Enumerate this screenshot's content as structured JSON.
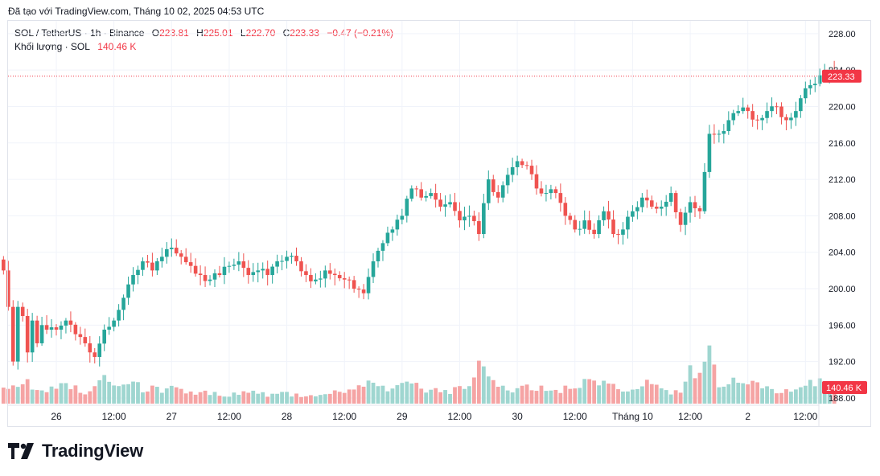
{
  "attribution": "Đã tạo với TradingView.com, Tháng 10 02, 2025 04:53 UTC",
  "legend": {
    "symbol": "SOL / TetherUS · 1h · Binance",
    "o_label": "O",
    "o_value": "223.81",
    "h_label": "H",
    "h_value": "225.01",
    "l_label": "L",
    "l_value": "222.70",
    "c_label": "C",
    "c_value": "223.33",
    "change": "−0.47 (−0.21%)",
    "volume_label": "Khối lượng · SOL",
    "volume_value": "140.46 K"
  },
  "colors": {
    "up": "#26a69a",
    "down": "#ef5350",
    "up_volume": "#9fd6d0",
    "down_volume": "#f5a4a4",
    "price_line": "#f23645",
    "grid": "#f0f3fa",
    "text": "#131722"
  },
  "brand": "TradingView",
  "chart_data": {
    "type": "candlestick",
    "title": "SOL / TetherUS · 1h · Binance",
    "y_axis": {
      "ticks": [
        "228.00",
        "224.00",
        "220.00",
        "216.00",
        "212.00",
        "208.00",
        "204.00",
        "200.00",
        "196.00",
        "192.00",
        "188.00"
      ],
      "range": [
        187.2,
        229.4
      ]
    },
    "x_axis": {
      "ticks": [
        {
          "label": "26",
          "index": 0
        },
        {
          "label": "12:00",
          "index": 12
        },
        {
          "label": "27",
          "index": 24
        },
        {
          "label": "12:00",
          "index": 36
        },
        {
          "label": "28",
          "index": 48
        },
        {
          "label": "12:00",
          "index": 60
        },
        {
          "label": "29",
          "index": 72
        },
        {
          "label": "12:00",
          "index": 84
        },
        {
          "label": "30",
          "index": 96
        },
        {
          "label": "12:00",
          "index": 108
        },
        {
          "label": "Tháng 10",
          "index": 120
        },
        {
          "label": "12:00",
          "index": 132
        },
        {
          "label": "2",
          "index": 144
        },
        {
          "label": "12:00",
          "index": 156
        }
      ],
      "first_index": -11
    },
    "last_price": "223.33",
    "last_volume": "140.46 K",
    "keypoints": [
      [
        -11,
        202
      ],
      [
        -10,
        198
      ],
      [
        -9,
        192
      ],
      [
        -8,
        198
      ],
      [
        -7,
        197
      ],
      [
        -6,
        193
      ],
      [
        -5,
        196.5
      ],
      [
        -4,
        194
      ],
      [
        -3,
        196
      ],
      [
        -2,
        195.5
      ],
      [
        0,
        195.5
      ],
      [
        2,
        196.5
      ],
      [
        4,
        195
      ],
      [
        6,
        194
      ],
      [
        8,
        192.5
      ],
      [
        10,
        195.5
      ],
      [
        12,
        196.5
      ],
      [
        14,
        199
      ],
      [
        16,
        201.5
      ],
      [
        18,
        203
      ],
      [
        20,
        202
      ],
      [
        22,
        203.5
      ],
      [
        24,
        204.5
      ],
      [
        26,
        203.5
      ],
      [
        28,
        202.5
      ],
      [
        30,
        201.5
      ],
      [
        32,
        201
      ],
      [
        34,
        201.5
      ],
      [
        36,
        202.5
      ],
      [
        38,
        203
      ],
      [
        40,
        201.5
      ],
      [
        42,
        202
      ],
      [
        44,
        201.5
      ],
      [
        46,
        203
      ],
      [
        48,
        203.5
      ],
      [
        50,
        203
      ],
      [
        52,
        201.5
      ],
      [
        54,
        201
      ],
      [
        56,
        202
      ],
      [
        58,
        201.5
      ],
      [
        60,
        201
      ],
      [
        62,
        200
      ],
      [
        64,
        199.5
      ],
      [
        66,
        203
      ],
      [
        68,
        205
      ],
      [
        70,
        206.5
      ],
      [
        72,
        208
      ],
      [
        74,
        211
      ],
      [
        76,
        210
      ],
      [
        78,
        210.5
      ],
      [
        80,
        209
      ],
      [
        82,
        209.5
      ],
      [
        84,
        207.5
      ],
      [
        86,
        208
      ],
      [
        88,
        206
      ],
      [
        90,
        212
      ],
      [
        92,
        210
      ],
      [
        94,
        212.5
      ],
      [
        96,
        214
      ],
      [
        98,
        213.5
      ],
      [
        100,
        211
      ],
      [
        102,
        210.5
      ],
      [
        104,
        210.5
      ],
      [
        106,
        208
      ],
      [
        108,
        206.5
      ],
      [
        110,
        207.5
      ],
      [
        112,
        206
      ],
      [
        114,
        208.5
      ],
      [
        116,
        206
      ],
      [
        118,
        206.5
      ],
      [
        120,
        208.5
      ],
      [
        122,
        210
      ],
      [
        124,
        209
      ],
      [
        126,
        209
      ],
      [
        128,
        210.5
      ],
      [
        130,
        207
      ],
      [
        132,
        209.5
      ],
      [
        134,
        208.5
      ],
      [
        136,
        217
      ],
      [
        138,
        217
      ],
      [
        140,
        218.5
      ],
      [
        142,
        219.5
      ],
      [
        144,
        219.5
      ],
      [
        146,
        218.5
      ],
      [
        148,
        219.5
      ],
      [
        150,
        220
      ],
      [
        152,
        218.5
      ],
      [
        154,
        219.5
      ],
      [
        156,
        222
      ],
      [
        158,
        222.5
      ],
      [
        160,
        223.6
      ],
      [
        161,
        223.81
      ],
      [
        162,
        223.33
      ]
    ],
    "volume_keypoints": [
      [
        -11,
        20
      ],
      [
        -9,
        22
      ],
      [
        -7,
        28
      ],
      [
        -5,
        20
      ],
      [
        -3,
        16
      ],
      [
        0,
        22
      ],
      [
        2,
        26
      ],
      [
        4,
        18
      ],
      [
        6,
        14
      ],
      [
        8,
        18
      ],
      [
        10,
        38
      ],
      [
        12,
        26
      ],
      [
        14,
        22
      ],
      [
        16,
        28
      ],
      [
        18,
        16
      ],
      [
        20,
        18
      ],
      [
        22,
        16
      ],
      [
        24,
        20
      ],
      [
        26,
        16
      ],
      [
        28,
        12
      ],
      [
        30,
        14
      ],
      [
        32,
        12
      ],
      [
        34,
        11
      ],
      [
        36,
        10
      ],
      [
        38,
        12
      ],
      [
        40,
        14
      ],
      [
        42,
        12
      ],
      [
        44,
        10
      ],
      [
        46,
        11
      ],
      [
        48,
        12
      ],
      [
        50,
        10
      ],
      [
        52,
        9
      ],
      [
        54,
        10
      ],
      [
        56,
        12
      ],
      [
        58,
        14
      ],
      [
        60,
        16
      ],
      [
        62,
        18
      ],
      [
        64,
        26
      ],
      [
        66,
        20
      ],
      [
        68,
        18
      ],
      [
        70,
        16
      ],
      [
        72,
        22
      ],
      [
        74,
        24
      ],
      [
        76,
        18
      ],
      [
        78,
        16
      ],
      [
        80,
        15
      ],
      [
        82,
        14
      ],
      [
        84,
        18
      ],
      [
        86,
        20
      ],
      [
        88,
        45
      ],
      [
        90,
        28
      ],
      [
        92,
        20
      ],
      [
        94,
        16
      ],
      [
        96,
        18
      ],
      [
        98,
        22
      ],
      [
        100,
        20
      ],
      [
        102,
        16
      ],
      [
        104,
        14
      ],
      [
        106,
        18
      ],
      [
        108,
        20
      ],
      [
        110,
        26
      ],
      [
        112,
        28
      ],
      [
        114,
        24
      ],
      [
        116,
        22
      ],
      [
        118,
        18
      ],
      [
        120,
        20
      ],
      [
        122,
        24
      ],
      [
        124,
        22
      ],
      [
        126,
        18
      ],
      [
        128,
        14
      ],
      [
        130,
        12
      ],
      [
        132,
        40
      ],
      [
        134,
        30
      ],
      [
        136,
        56
      ],
      [
        138,
        24
      ],
      [
        140,
        26
      ],
      [
        142,
        28
      ],
      [
        144,
        24
      ],
      [
        146,
        22
      ],
      [
        148,
        18
      ],
      [
        150,
        16
      ],
      [
        152,
        14
      ],
      [
        154,
        18
      ],
      [
        156,
        22
      ],
      [
        158,
        26
      ],
      [
        160,
        24
      ],
      [
        162,
        18
      ]
    ],
    "volume_label": "Khối lượng · SOL"
  }
}
